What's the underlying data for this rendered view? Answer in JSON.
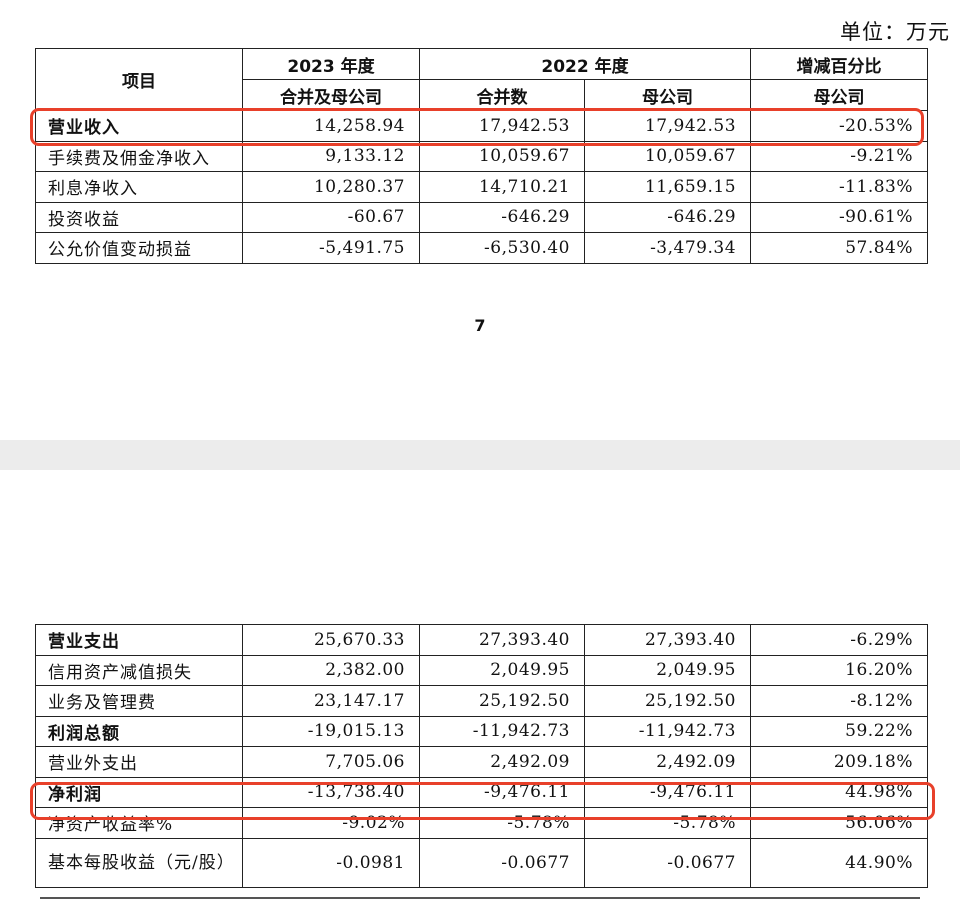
{
  "unit_label": "单位：万元",
  "page_number": "7",
  "table": {
    "header_row1": {
      "item": "项目",
      "y2023": "2023 年度",
      "y2022": "2022 年度",
      "change": "增减百分比"
    },
    "header_row2": {
      "c1": "合并及母公司",
      "c2": "合并数",
      "c3": "母公司",
      "c4": "母公司"
    },
    "rows_page1": [
      {
        "label": "营业收入",
        "v2023": "14,258.94",
        "v2022c": "17,942.53",
        "v2022p": "17,942.53",
        "chg": "-20.53%",
        "bold": true
      },
      {
        "label": "手续费及佣金净收入",
        "v2023": "9,133.12",
        "v2022c": "10,059.67",
        "v2022p": "10,059.67",
        "chg": "-9.21%",
        "bold": false
      },
      {
        "label": "利息净收入",
        "v2023": "10,280.37",
        "v2022c": "14,710.21",
        "v2022p": "11,659.15",
        "chg": "-11.83%",
        "bold": false
      },
      {
        "label": "投资收益",
        "v2023": "-60.67",
        "v2022c": "-646.29",
        "v2022p": "-646.29",
        "chg": "-90.61%",
        "bold": false
      },
      {
        "label": "公允价值变动损益",
        "v2023": "-5,491.75",
        "v2022c": "-6,530.40",
        "v2022p": "-3,479.34",
        "chg": "57.84%",
        "bold": false
      }
    ],
    "rows_page2": [
      {
        "label": "营业支出",
        "v2023": "25,670.33",
        "v2022c": "27,393.40",
        "v2022p": "27,393.40",
        "chg": "-6.29%",
        "bold": true
      },
      {
        "label": "信用资产减值损失",
        "v2023": "2,382.00",
        "v2022c": "2,049.95",
        "v2022p": "2,049.95",
        "chg": "16.20%",
        "bold": false
      },
      {
        "label": "业务及管理费",
        "v2023": "23,147.17",
        "v2022c": "25,192.50",
        "v2022p": "25,192.50",
        "chg": "-8.12%",
        "bold": false
      },
      {
        "label": "利润总额",
        "v2023": "-19,015.13",
        "v2022c": "-11,942.73",
        "v2022p": "-11,942.73",
        "chg": "59.22%",
        "bold": true
      },
      {
        "label": "营业外支出",
        "v2023": "7,705.06",
        "v2022c": "2,492.09",
        "v2022p": "2,492.09",
        "chg": "209.18%",
        "bold": false
      },
      {
        "label": "净利润",
        "v2023": "-13,738.40",
        "v2022c": "-9,476.11",
        "v2022p": "-9,476.11",
        "chg": "44.98%",
        "bold": true
      },
      {
        "label": "净资产收益率%",
        "v2023": "-9.02%",
        "v2022c": "-5.78%",
        "v2022p": "-5.78%",
        "chg": "56.06%",
        "bold": false
      },
      {
        "label": "基本每股收益（元/股）",
        "v2023": "-0.0981",
        "v2022c": "-0.0677",
        "v2022p": "-0.0677",
        "chg": "44.90%",
        "bold": false
      }
    ]
  },
  "highlight_color": "#e8402a"
}
